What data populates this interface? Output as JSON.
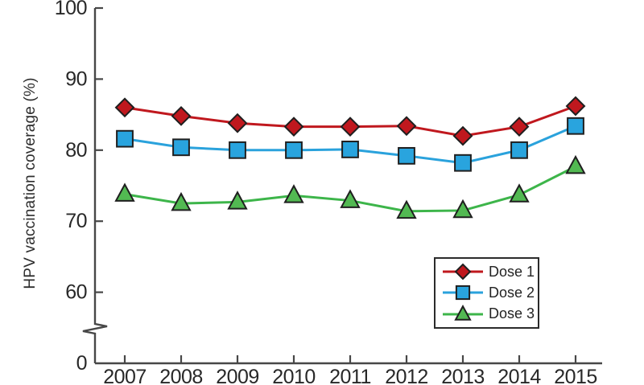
{
  "chart_data": {
    "type": "line",
    "title": "",
    "xlabel": "",
    "ylabel": "HPV vaccination coverage (%)",
    "x": [
      2007,
      2008,
      2009,
      2010,
      2011,
      2012,
      2013,
      2014,
      2015
    ],
    "y_ticks": [
      0,
      60,
      70,
      80,
      90,
      100
    ],
    "ylim": [
      0,
      100
    ],
    "axis_break": {
      "between": [
        0,
        60
      ]
    },
    "grid": false,
    "legend_position": "inside-lower-right",
    "series": [
      {
        "name": "Dose 1",
        "marker": "diamond",
        "line_color": "#c0181e",
        "fill_color": "#c0181e",
        "values": [
          86.0,
          84.8,
          83.8,
          83.3,
          83.3,
          83.4,
          82.0,
          83.3,
          86.2
        ]
      },
      {
        "name": "Dose 2",
        "marker": "square",
        "line_color": "#2aa2dc",
        "fill_color": "#29a4de",
        "values": [
          81.6,
          80.4,
          80.0,
          80.0,
          80.1,
          79.2,
          78.2,
          80.0,
          83.4
        ]
      },
      {
        "name": "Dose 3",
        "marker": "triangle",
        "line_color": "#3db54a",
        "fill_color": "#52b952",
        "values": [
          73.8,
          72.5,
          72.7,
          73.6,
          72.9,
          71.4,
          71.5,
          73.7,
          77.7
        ]
      }
    ],
    "marker_outline_color": "#1f1f1f",
    "axis_color": "#474747",
    "text_color": "#282828"
  }
}
